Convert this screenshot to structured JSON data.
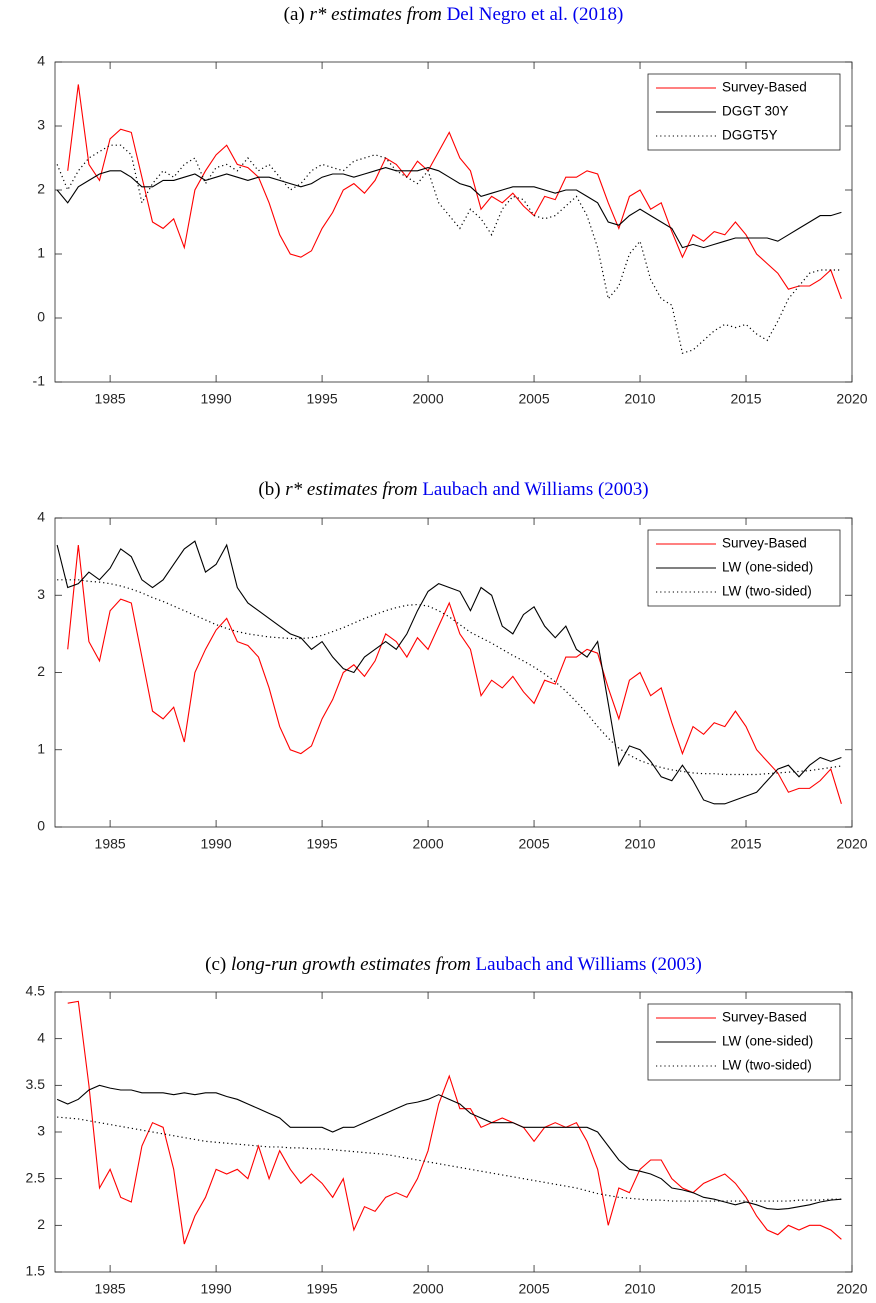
{
  "chart_data": [
    {
      "type": "line",
      "title": {
        "label": "(a)",
        "subject": "r* estimates from",
        "citation": "Del Negro et al.",
        "year": "(2018)"
      },
      "x": [
        1982.5,
        1983,
        1983.5,
        1984,
        1984.5,
        1985,
        1985.5,
        1986,
        1986.5,
        1987,
        1987.5,
        1988,
        1988.5,
        1989,
        1989.5,
        1990,
        1990.5,
        1991,
        1991.5,
        1992,
        1992.5,
        1993,
        1993.5,
        1994,
        1994.5,
        1995,
        1995.5,
        1996,
        1996.5,
        1997,
        1997.5,
        1998,
        1998.5,
        1999,
        1999.5,
        2000,
        2000.5,
        2001,
        2001.5,
        2002,
        2002.5,
        2003,
        2003.5,
        2004,
        2004.5,
        2005,
        2005.5,
        2006,
        2006.5,
        2007,
        2007.5,
        2008,
        2008.5,
        2009,
        2009.5,
        2010,
        2010.5,
        2011,
        2011.5,
        2012,
        2012.5,
        2013,
        2013.5,
        2014,
        2014.5,
        2015,
        2015.5,
        2016,
        2016.5,
        2017,
        2017.5,
        2018,
        2018.5,
        2019,
        2019.5
      ],
      "xlim": [
        1982.4,
        2020
      ],
      "xticks": [
        1985,
        1990,
        1995,
        2000,
        2005,
        2010,
        2015,
        2020
      ],
      "ylim": [
        -1,
        4
      ],
      "yticks": [
        -1,
        0,
        1,
        2,
        3,
        4
      ],
      "legend": "top-right",
      "series": [
        {
          "name": "Survey-Based",
          "color": "#ff0000",
          "line_style": "solid",
          "values": [
            null,
            2.3,
            3.65,
            2.4,
            2.15,
            2.8,
            2.95,
            2.9,
            2.2,
            1.5,
            1.4,
            1.55,
            1.1,
            2.0,
            2.3,
            2.55,
            2.7,
            2.4,
            2.35,
            2.2,
            1.8,
            1.3,
            1.0,
            0.95,
            1.05,
            1.4,
            1.65,
            2.0,
            2.1,
            1.95,
            2.15,
            2.5,
            2.4,
            2.2,
            2.45,
            2.3,
            2.6,
            2.9,
            2.5,
            2.3,
            1.7,
            1.9,
            1.8,
            1.95,
            1.75,
            1.6,
            1.9,
            1.85,
            2.2,
            2.2,
            2.3,
            2.25,
            1.8,
            1.4,
            1.9,
            2.0,
            1.7,
            1.8,
            1.35,
            0.95,
            1.3,
            1.2,
            1.35,
            1.3,
            1.5,
            1.3,
            1.0,
            0.85,
            0.7,
            0.45,
            0.5,
            0.5,
            0.6,
            0.75,
            0.3
          ]
        },
        {
          "name": "DGGT 30Y",
          "color": "#000000",
          "line_style": "solid",
          "values": [
            2.0,
            1.8,
            2.05,
            2.15,
            2.25,
            2.3,
            2.3,
            2.2,
            2.05,
            2.05,
            2.15,
            2.15,
            2.2,
            2.25,
            2.15,
            2.2,
            2.25,
            2.2,
            2.15,
            2.2,
            2.2,
            2.15,
            2.1,
            2.05,
            2.1,
            2.2,
            2.25,
            2.25,
            2.2,
            2.25,
            2.3,
            2.35,
            2.3,
            2.3,
            2.3,
            2.35,
            2.3,
            2.2,
            2.1,
            2.05,
            1.9,
            1.95,
            2.0,
            2.05,
            2.05,
            2.05,
            2.0,
            1.95,
            2.0,
            2.0,
            1.9,
            1.8,
            1.5,
            1.45,
            1.6,
            1.7,
            1.6,
            1.5,
            1.4,
            1.1,
            1.15,
            1.1,
            1.15,
            1.2,
            1.25,
            1.25,
            1.25,
            1.25,
            1.2,
            1.3,
            1.4,
            1.5,
            1.6,
            1.6,
            1.65
          ]
        },
        {
          "name": "DGGT5Y",
          "color": "#000000",
          "line_style": "dotted",
          "values": [
            2.4,
            2.0,
            2.3,
            2.5,
            2.6,
            2.7,
            2.7,
            2.55,
            1.8,
            2.1,
            2.3,
            2.2,
            2.4,
            2.5,
            2.1,
            2.35,
            2.4,
            2.3,
            2.5,
            2.3,
            2.4,
            2.2,
            2.0,
            2.1,
            2.3,
            2.4,
            2.35,
            2.3,
            2.45,
            2.5,
            2.55,
            2.5,
            2.3,
            2.2,
            2.1,
            2.3,
            1.8,
            1.6,
            1.4,
            1.7,
            1.55,
            1.3,
            1.7,
            1.9,
            1.85,
            1.6,
            1.55,
            1.6,
            1.75,
            1.9,
            1.6,
            1.1,
            0.3,
            0.5,
            1.0,
            1.2,
            0.6,
            0.3,
            0.2,
            -0.55,
            -0.5,
            -0.35,
            -0.2,
            -0.1,
            -0.15,
            -0.1,
            -0.25,
            -0.35,
            -0.05,
            0.3,
            0.5,
            0.7,
            0.75,
            0.75,
            0.75
          ]
        }
      ]
    },
    {
      "type": "line",
      "title": {
        "label": "(b)",
        "subject": "r* estimates from",
        "citation": "Laubach and Williams",
        "year": "(2003)"
      },
      "x": [
        1982.5,
        1983,
        1983.5,
        1984,
        1984.5,
        1985,
        1985.5,
        1986,
        1986.5,
        1987,
        1987.5,
        1988,
        1988.5,
        1989,
        1989.5,
        1990,
        1990.5,
        1991,
        1991.5,
        1992,
        1992.5,
        1993,
        1993.5,
        1994,
        1994.5,
        1995,
        1995.5,
        1996,
        1996.5,
        1997,
        1997.5,
        1998,
        1998.5,
        1999,
        1999.5,
        2000,
        2000.5,
        2001,
        2001.5,
        2002,
        2002.5,
        2003,
        2003.5,
        2004,
        2004.5,
        2005,
        2005.5,
        2006,
        2006.5,
        2007,
        2007.5,
        2008,
        2008.5,
        2009,
        2009.5,
        2010,
        2010.5,
        2011,
        2011.5,
        2012,
        2012.5,
        2013,
        2013.5,
        2014,
        2014.5,
        2015,
        2015.5,
        2016,
        2016.5,
        2017,
        2017.5,
        2018,
        2018.5,
        2019,
        2019.5
      ],
      "xlim": [
        1982.4,
        2020
      ],
      "xticks": [
        1985,
        1990,
        1995,
        2000,
        2005,
        2010,
        2015,
        2020
      ],
      "ylim": [
        0,
        4
      ],
      "yticks": [
        0,
        1,
        2,
        3,
        4
      ],
      "legend": "top-right",
      "series": [
        {
          "name": "Survey-Based",
          "color": "#ff0000",
          "line_style": "solid",
          "values": [
            null,
            2.3,
            3.65,
            2.4,
            2.15,
            2.8,
            2.95,
            2.9,
            2.2,
            1.5,
            1.4,
            1.55,
            1.1,
            2.0,
            2.3,
            2.55,
            2.7,
            2.4,
            2.35,
            2.2,
            1.8,
            1.3,
            1.0,
            0.95,
            1.05,
            1.4,
            1.65,
            2.0,
            2.1,
            1.95,
            2.15,
            2.5,
            2.4,
            2.2,
            2.45,
            2.3,
            2.6,
            2.9,
            2.5,
            2.3,
            1.7,
            1.9,
            1.8,
            1.95,
            1.75,
            1.6,
            1.9,
            1.85,
            2.2,
            2.2,
            2.3,
            2.25,
            1.8,
            1.4,
            1.9,
            2.0,
            1.7,
            1.8,
            1.35,
            0.95,
            1.3,
            1.2,
            1.35,
            1.3,
            1.5,
            1.3,
            1.0,
            0.85,
            0.7,
            0.45,
            0.5,
            0.5,
            0.6,
            0.75,
            0.3
          ]
        },
        {
          "name": "LW (one-sided)",
          "color": "#000000",
          "line_style": "solid",
          "values": [
            3.65,
            3.1,
            3.15,
            3.3,
            3.2,
            3.35,
            3.6,
            3.5,
            3.2,
            3.1,
            3.2,
            3.4,
            3.6,
            3.7,
            3.3,
            3.4,
            3.65,
            3.1,
            2.9,
            2.8,
            2.7,
            2.6,
            2.5,
            2.45,
            2.3,
            2.4,
            2.2,
            2.05,
            2.0,
            2.2,
            2.3,
            2.4,
            2.3,
            2.5,
            2.8,
            3.05,
            3.15,
            3.1,
            3.05,
            2.8,
            3.1,
            3.0,
            2.6,
            2.5,
            2.75,
            2.85,
            2.6,
            2.45,
            2.6,
            2.3,
            2.2,
            2.4,
            1.6,
            0.8,
            1.05,
            1.0,
            0.85,
            0.65,
            0.6,
            0.8,
            0.6,
            0.35,
            0.3,
            0.3,
            0.35,
            0.4,
            0.45,
            0.6,
            0.75,
            0.8,
            0.65,
            0.8,
            0.9,
            0.85,
            0.9
          ]
        },
        {
          "name": "LW (two-sided)",
          "color": "#000000",
          "line_style": "dotted",
          "values": [
            3.2,
            3.2,
            3.2,
            3.18,
            3.17,
            3.15,
            3.12,
            3.08,
            3.03,
            2.97,
            2.92,
            2.86,
            2.8,
            2.74,
            2.68,
            2.62,
            2.57,
            2.53,
            2.5,
            2.48,
            2.46,
            2.45,
            2.44,
            2.44,
            2.45,
            2.48,
            2.53,
            2.58,
            2.64,
            2.7,
            2.75,
            2.8,
            2.84,
            2.87,
            2.88,
            2.86,
            2.8,
            2.72,
            2.62,
            2.52,
            2.45,
            2.38,
            2.3,
            2.22,
            2.15,
            2.07,
            1.98,
            1.88,
            1.76,
            1.62,
            1.47,
            1.3,
            1.15,
            1.02,
            0.93,
            0.86,
            0.81,
            0.77,
            0.74,
            0.72,
            0.7,
            0.69,
            0.69,
            0.68,
            0.68,
            0.68,
            0.68,
            0.69,
            0.7,
            0.71,
            0.72,
            0.73,
            0.75,
            0.77,
            0.79
          ]
        }
      ]
    },
    {
      "type": "line",
      "title": {
        "label": "(c)",
        "subject": "long-run growth estimates from",
        "citation": "Laubach and Williams",
        "year": "(2003)"
      },
      "x": [
        1982.5,
        1983,
        1983.5,
        1984,
        1984.5,
        1985,
        1985.5,
        1986,
        1986.5,
        1987,
        1987.5,
        1988,
        1988.5,
        1989,
        1989.5,
        1990,
        1990.5,
        1991,
        1991.5,
        1992,
        1992.5,
        1993,
        1993.5,
        1994,
        1994.5,
        1995,
        1995.5,
        1996,
        1996.5,
        1997,
        1997.5,
        1998,
        1998.5,
        1999,
        1999.5,
        2000,
        2000.5,
        2001,
        2001.5,
        2002,
        2002.5,
        2003,
        2003.5,
        2004,
        2004.5,
        2005,
        2005.5,
        2006,
        2006.5,
        2007,
        2007.5,
        2008,
        2008.5,
        2009,
        2009.5,
        2010,
        2010.5,
        2011,
        2011.5,
        2012,
        2012.5,
        2013,
        2013.5,
        2014,
        2014.5,
        2015,
        2015.5,
        2016,
        2016.5,
        2017,
        2017.5,
        2018,
        2018.5,
        2019,
        2019.5
      ],
      "xlim": [
        1982.4,
        2020
      ],
      "xticks": [
        1985,
        1990,
        1995,
        2000,
        2005,
        2010,
        2015,
        2020
      ],
      "ylim": [
        1.5,
        4.5
      ],
      "yticks": [
        1.5,
        2,
        2.5,
        3,
        3.5,
        4,
        4.5
      ],
      "legend": "top-right",
      "series": [
        {
          "name": "Survey-Based",
          "color": "#ff0000",
          "line_style": "solid",
          "values": [
            null,
            4.38,
            4.4,
            3.5,
            2.4,
            2.6,
            2.3,
            2.25,
            2.85,
            3.1,
            3.05,
            2.6,
            1.8,
            2.1,
            2.3,
            2.6,
            2.55,
            2.6,
            2.5,
            2.85,
            2.5,
            2.8,
            2.6,
            2.45,
            2.55,
            2.45,
            2.3,
            2.5,
            1.95,
            2.2,
            2.15,
            2.3,
            2.35,
            2.3,
            2.5,
            2.8,
            3.3,
            3.6,
            3.25,
            3.25,
            3.05,
            3.1,
            3.15,
            3.1,
            3.05,
            2.9,
            3.05,
            3.1,
            3.05,
            3.1,
            2.9,
            2.6,
            2.0,
            2.4,
            2.35,
            2.6,
            2.7,
            2.7,
            2.5,
            2.4,
            2.35,
            2.45,
            2.5,
            2.55,
            2.45,
            2.3,
            2.1,
            1.95,
            1.9,
            2.0,
            1.95,
            2.0,
            2.0,
            1.95,
            1.85
          ]
        },
        {
          "name": "LW (one-sided)",
          "color": "#000000",
          "line_style": "solid",
          "values": [
            3.35,
            3.3,
            3.35,
            3.45,
            3.5,
            3.47,
            3.45,
            3.45,
            3.42,
            3.42,
            3.42,
            3.4,
            3.42,
            3.4,
            3.42,
            3.42,
            3.38,
            3.35,
            3.3,
            3.25,
            3.2,
            3.15,
            3.05,
            3.05,
            3.05,
            3.05,
            3.0,
            3.05,
            3.05,
            3.1,
            3.15,
            3.2,
            3.25,
            3.3,
            3.32,
            3.35,
            3.4,
            3.35,
            3.3,
            3.2,
            3.15,
            3.1,
            3.1,
            3.1,
            3.05,
            3.05,
            3.05,
            3.05,
            3.05,
            3.05,
            3.05,
            3.0,
            2.85,
            2.7,
            2.6,
            2.58,
            2.55,
            2.5,
            2.4,
            2.38,
            2.35,
            2.3,
            2.28,
            2.25,
            2.22,
            2.25,
            2.22,
            2.18,
            2.17,
            2.18,
            2.2,
            2.22,
            2.25,
            2.27,
            2.28
          ]
        },
        {
          "name": "LW (two-sided)",
          "color": "#000000",
          "line_style": "dotted",
          "values": [
            3.16,
            3.15,
            3.14,
            3.12,
            3.1,
            3.08,
            3.06,
            3.04,
            3.02,
            3.0,
            2.98,
            2.96,
            2.94,
            2.92,
            2.9,
            2.89,
            2.88,
            2.87,
            2.86,
            2.85,
            2.84,
            2.84,
            2.83,
            2.83,
            2.82,
            2.82,
            2.81,
            2.8,
            2.79,
            2.78,
            2.77,
            2.76,
            2.74,
            2.72,
            2.7,
            2.68,
            2.66,
            2.64,
            2.62,
            2.6,
            2.58,
            2.56,
            2.54,
            2.52,
            2.5,
            2.48,
            2.46,
            2.44,
            2.42,
            2.4,
            2.37,
            2.34,
            2.32,
            2.3,
            2.29,
            2.28,
            2.27,
            2.27,
            2.26,
            2.26,
            2.26,
            2.26,
            2.26,
            2.26,
            2.26,
            2.26,
            2.26,
            2.26,
            2.26,
            2.26,
            2.27,
            2.27,
            2.27,
            2.28,
            2.28
          ]
        }
      ]
    }
  ]
}
